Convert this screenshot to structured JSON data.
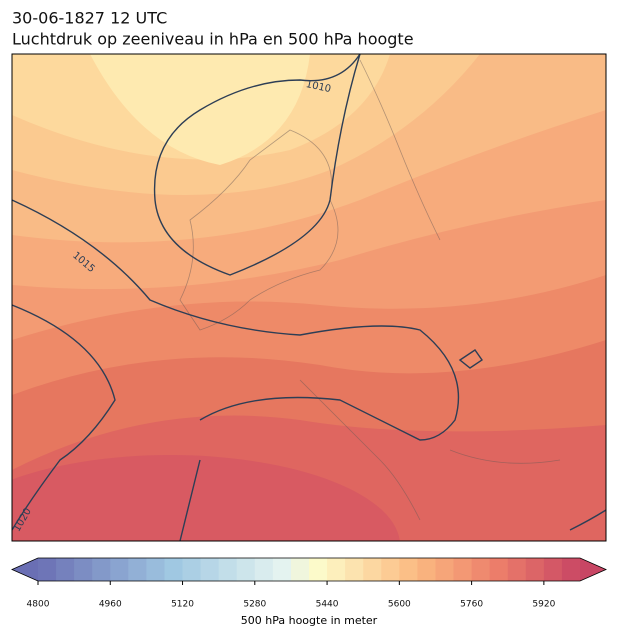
{
  "title": {
    "line1": "30-06-1827 12 UTC",
    "line2": "Luchtdruk op zeeniveau in hPa en 500 hPa hoogte"
  },
  "isobar_labels": [
    1010,
    1015,
    1020
  ],
  "colorbar": {
    "range": [
      4800,
      6000
    ],
    "ticks": [
      4800,
      4960,
      5120,
      5280,
      5440,
      5600,
      5760,
      5920
    ],
    "label": "500 hPa hoogte in meter"
  }
}
